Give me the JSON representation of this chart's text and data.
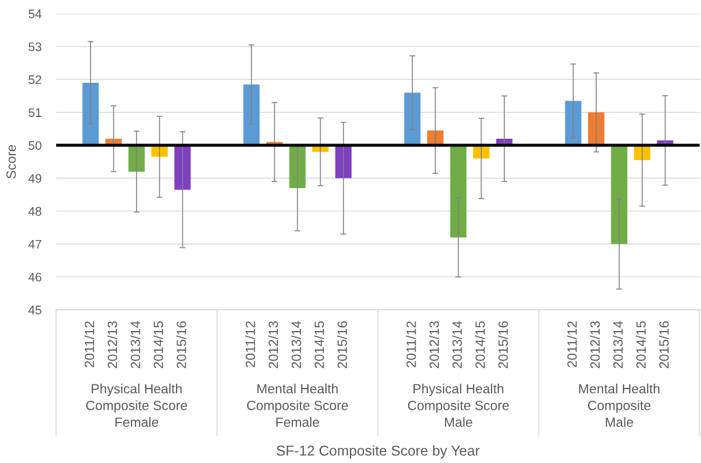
{
  "chart_data": {
    "type": "bar",
    "ylabel": "Score",
    "categories": [
      null,
      "2011/12",
      "2012/13",
      "2013/14",
      "2014/15",
      "2015/16",
      null,
      null,
      "2011/12",
      "2012/13",
      "2013/14",
      "2014/15",
      "2015/16",
      null,
      null,
      "2011/12",
      "2012/13",
      "2013/14",
      "2014/15",
      "2015/16",
      null,
      null,
      "2011/12",
      "2012/13",
      "2013/14",
      "2014/15",
      "2015/16",
      null
    ],
    "base": [
      null,
      50,
      50,
      50,
      50,
      50,
      null,
      null,
      50,
      50,
      50,
      50,
      50,
      null,
      null,
      50,
      50,
      50,
      50,
      50,
      null,
      null,
      50,
      50,
      50,
      50,
      50,
      null
    ],
    "values": [
      null,
      1.9,
      0.2,
      -0.8,
      -0.35,
      -1.35,
      null,
      null,
      1.85,
      0.1,
      -1.3,
      -0.2,
      -1.0,
      null,
      null,
      1.6,
      0.45,
      -2.8,
      -0.4,
      0.2,
      null,
      null,
      1.35,
      1.0,
      -3.0,
      -0.45,
      0.15,
      null
    ],
    "errors": [
      null,
      1.25,
      1.0,
      1.23,
      1.23,
      1.76,
      null,
      null,
      1.2,
      1.2,
      1.3,
      1.03,
      1.7,
      null,
      null,
      1.12,
      1.3,
      1.2,
      1.22,
      1.3,
      null,
      null,
      1.12,
      1.2,
      1.37,
      1.4,
      1.36,
      null
    ],
    "colors": [
      null,
      "#5b9bd5",
      "#ed7d31",
      "#70ad47",
      "#ffc000",
      "#7f3fbf",
      null,
      null,
      "#5b9bd5",
      "#ed7d31",
      "#70ad47",
      "#ffc000",
      "#7f3fbf",
      null,
      null,
      "#5b9bd5",
      "#ed7d31",
      "#70ad47",
      "#ffc000",
      "#7f3fbf",
      null,
      null,
      "#5b9bd5",
      "#ed7d31",
      "#70ad47",
      "#ffc000",
      "#7f3fbf",
      null
    ],
    "annotations": [
      "Physical Health\nComposite Score\nFemale",
      "Mental Health\nComposite Score\nFemale",
      "Physical Health\nComposite Score\nMale",
      "Mental Health\nComposite\nMale",
      "SF-12 Composite Score by Year"
    ],
    "ylim": [
      45,
      54
    ],
    "yticks": [
      45,
      46,
      47,
      48,
      49,
      50,
      51,
      52,
      53,
      54
    ],
    "grid": "y",
    "ref_lines": [
      {
        "axis": "y",
        "value": 50,
        "color": "#000000"
      }
    ]
  }
}
